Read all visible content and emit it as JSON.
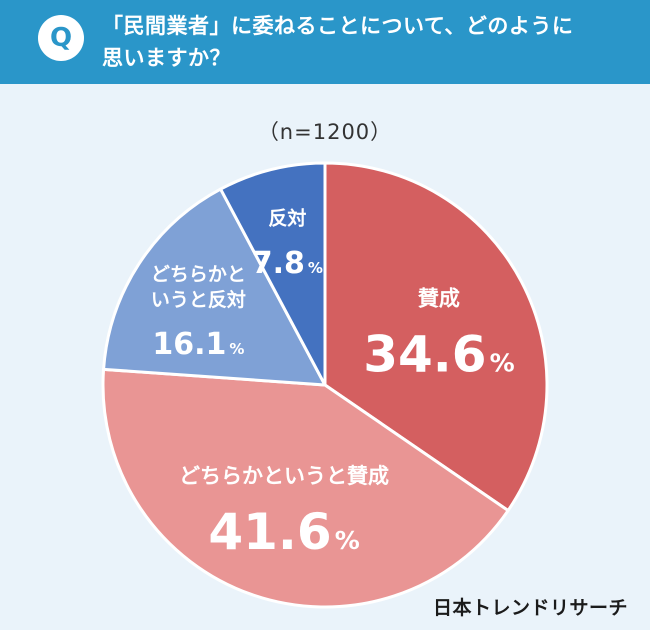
{
  "header": {
    "badge": "Q",
    "question": "「民間業者」に委ねることについて、どのように\n思いますか？"
  },
  "sample_size": "（n=1200）",
  "brand": "日本トレンドリサーチ",
  "colors": {
    "header_bg": "#2a96c9",
    "background": "#eaf3fa"
  },
  "chart_data": {
    "type": "pie",
    "title": "「民間業者」に委ねることについて、どのように思いますか？",
    "n": 1200,
    "unit": "%",
    "slices": [
      {
        "label": "賛成",
        "value": 34.6,
        "color": "#d45f60"
      },
      {
        "label": "どちらかというと賛成",
        "value": 41.6,
        "color": "#e99594"
      },
      {
        "label": "どちらかというと反対",
        "value": 16.1,
        "color": "#7fa1d6"
      },
      {
        "label": "反対",
        "value": 7.8,
        "color": "#4472c0"
      }
    ]
  }
}
